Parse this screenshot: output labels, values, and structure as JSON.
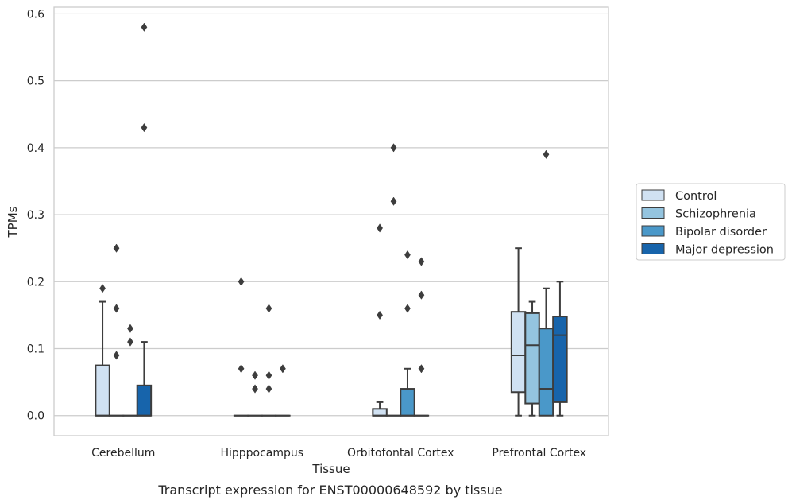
{
  "chart_data": {
    "type": "box",
    "title": "",
    "caption": "Transcript expression for ENST00000648592 by tissue",
    "xlabel": "Tissue",
    "ylabel": "TPMs",
    "ylim": [
      -0.03,
      0.61
    ],
    "yticks": [
      0.0,
      0.1,
      0.2,
      0.3,
      0.4,
      0.5,
      0.6
    ],
    "ytick_labels": [
      "0.0",
      "0.1",
      "0.2",
      "0.3",
      "0.4",
      "0.5",
      "0.6"
    ],
    "grid": "horizontal",
    "legend_position": "right",
    "categories": [
      "Cerebellum",
      "Hipppocampus",
      "Orbitofontal Cortex",
      "Prefrontal Cortex"
    ],
    "series": [
      {
        "name": "Control",
        "color": "#d0e1f2",
        "boxes": [
          {
            "q1": 0.0,
            "median": 0.0,
            "q3": 0.075,
            "whisker_low": 0.0,
            "whisker_high": 0.17,
            "outliers": [
              0.19
            ]
          },
          {
            "q1": 0.0,
            "median": 0.0,
            "q3": 0.0,
            "whisker_low": 0.0,
            "whisker_high": 0.0,
            "outliers": [
              0.2,
              0.07
            ]
          },
          {
            "q1": 0.0,
            "median": 0.0,
            "q3": 0.01,
            "whisker_low": 0.0,
            "whisker_high": 0.02,
            "outliers": [
              0.28,
              0.15
            ]
          },
          {
            "q1": 0.035,
            "median": 0.09,
            "q3": 0.155,
            "whisker_low": 0.0,
            "whisker_high": 0.25,
            "outliers": []
          }
        ]
      },
      {
        "name": "Schizophrenia",
        "color": "#94c4df",
        "boxes": [
          {
            "q1": 0.0,
            "median": 0.0,
            "q3": 0.0,
            "whisker_low": 0.0,
            "whisker_high": 0.0,
            "outliers": [
              0.25,
              0.16,
              0.09
            ]
          },
          {
            "q1": 0.0,
            "median": 0.0,
            "q3": 0.0,
            "whisker_low": 0.0,
            "whisker_high": 0.0,
            "outliers": [
              0.06,
              0.04
            ]
          },
          {
            "q1": 0.0,
            "median": 0.0,
            "q3": 0.0,
            "whisker_low": 0.0,
            "whisker_high": 0.0,
            "outliers": [
              0.4,
              0.32
            ]
          },
          {
            "q1": 0.018,
            "median": 0.105,
            "q3": 0.153,
            "whisker_low": 0.0,
            "whisker_high": 0.17,
            "outliers": []
          }
        ]
      },
      {
        "name": "Bipolar disorder",
        "color": "#4a98c9",
        "boxes": [
          {
            "q1": 0.0,
            "median": 0.0,
            "q3": 0.0,
            "whisker_low": 0.0,
            "whisker_high": 0.0,
            "outliers": [
              0.13,
              0.11
            ]
          },
          {
            "q1": 0.0,
            "median": 0.0,
            "q3": 0.0,
            "whisker_low": 0.0,
            "whisker_high": 0.0,
            "outliers": [
              0.16,
              0.06,
              0.04
            ]
          },
          {
            "q1": 0.0,
            "median": 0.0,
            "q3": 0.04,
            "whisker_low": 0.0,
            "whisker_high": 0.07,
            "outliers": [
              0.24,
              0.16
            ]
          },
          {
            "q1": 0.0,
            "median": 0.04,
            "q3": 0.13,
            "whisker_low": 0.0,
            "whisker_high": 0.19,
            "outliers": [
              0.39
            ]
          }
        ]
      },
      {
        "name": "Major depression",
        "color": "#1764ab",
        "boxes": [
          {
            "q1": 0.0,
            "median": 0.0,
            "q3": 0.045,
            "whisker_low": 0.0,
            "whisker_high": 0.11,
            "outliers": [
              0.58,
              0.43
            ]
          },
          {
            "q1": 0.0,
            "median": 0.0,
            "q3": 0.0,
            "whisker_low": 0.0,
            "whisker_high": 0.0,
            "outliers": [
              0.07
            ]
          },
          {
            "q1": 0.0,
            "median": 0.0,
            "q3": 0.0,
            "whisker_low": 0.0,
            "whisker_high": 0.0,
            "outliers": [
              0.23,
              0.18,
              0.07
            ]
          },
          {
            "q1": 0.02,
            "median": 0.12,
            "q3": 0.148,
            "whisker_low": 0.0,
            "whisker_high": 0.2,
            "outliers": []
          }
        ]
      }
    ]
  }
}
